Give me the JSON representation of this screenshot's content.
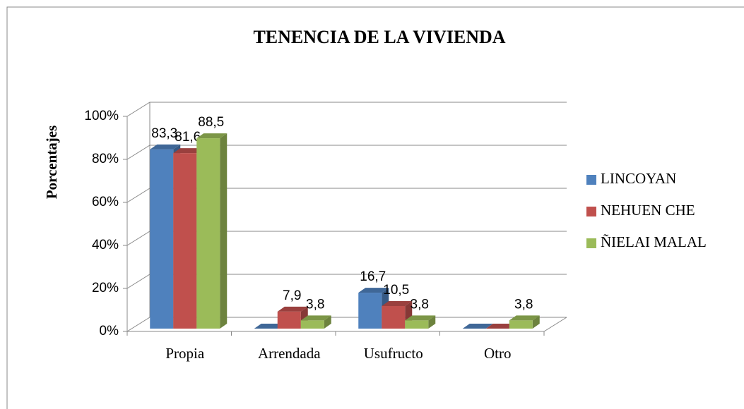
{
  "chart_data": {
    "type": "bar3d",
    "title": "TENENCIA DE LA VIVIENDA",
    "y_label": "Porcentajes",
    "categories": [
      "Propia",
      "Arrendada",
      "Usufructo",
      "Otro"
    ],
    "series": [
      {
        "name": "LINCOYAN",
        "color": "#4f81bd",
        "values": [
          83.3,
          0,
          16.7,
          0
        ],
        "value_labels": [
          "83,3",
          null,
          "16,7",
          null
        ]
      },
      {
        "name": "NEHUEN CHE",
        "color": "#c0504d",
        "values": [
          81.6,
          7.9,
          10.5,
          0
        ],
        "value_labels": [
          "81,6",
          "7,9",
          "10,5",
          null
        ]
      },
      {
        "name": "ÑIELAI MALAL",
        "color": "#9bbb59",
        "values": [
          88.5,
          3.8,
          3.8,
          3.8
        ],
        "value_labels": [
          "88,5",
          "3,8",
          "3,8",
          "3,8"
        ]
      }
    ],
    "ylim": [
      0,
      100
    ],
    "yticks": [
      {
        "value": 0,
        "label": "0%"
      },
      {
        "value": 20,
        "label": "20%"
      },
      {
        "value": 40,
        "label": "40%"
      },
      {
        "value": 60,
        "label": "60%"
      },
      {
        "value": 80,
        "label": "80%"
      },
      {
        "value": 100,
        "label": "100%"
      }
    ],
    "grid": true,
    "legend": "right"
  }
}
